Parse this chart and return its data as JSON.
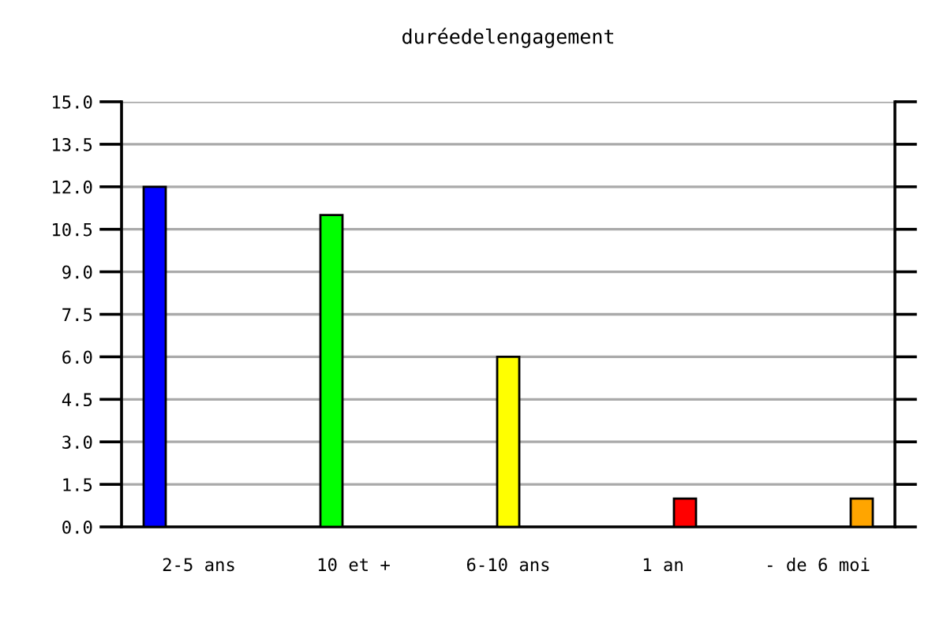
{
  "chart_data": {
    "type": "bar",
    "title": "duréedelengagement",
    "categories": [
      "2-5 ans",
      "10 et +",
      "6-10 ans",
      "1 an",
      "- de 6 moi"
    ],
    "series": [
      {
        "color": "#0000ff",
        "values": [
          12,
          null,
          null,
          null,
          null
        ]
      },
      {
        "color": "#00ff00",
        "values": [
          null,
          11,
          null,
          null,
          null
        ]
      },
      {
        "color": "#ffff00",
        "values": [
          null,
          null,
          6,
          null,
          null
        ]
      },
      {
        "color": "#ff0000",
        "values": [
          null,
          null,
          null,
          1,
          null
        ]
      },
      {
        "color": "#ffa500",
        "values": [
          null,
          null,
          null,
          null,
          1
        ]
      }
    ],
    "ylim": [
      0,
      15
    ],
    "yticks": [
      {
        "value": 0,
        "label": "0.0"
      },
      1.5,
      {
        "value": 3,
        "label": "3.0"
      },
      4.5,
      {
        "value": 6,
        "label": "6.0"
      },
      7.5,
      {
        "value": 9,
        "label": "9.0"
      },
      10.5,
      {
        "value": 12,
        "label": "12.0"
      },
      13.5,
      {
        "value": 15,
        "label": "15.0"
      }
    ],
    "grid": "y"
  }
}
